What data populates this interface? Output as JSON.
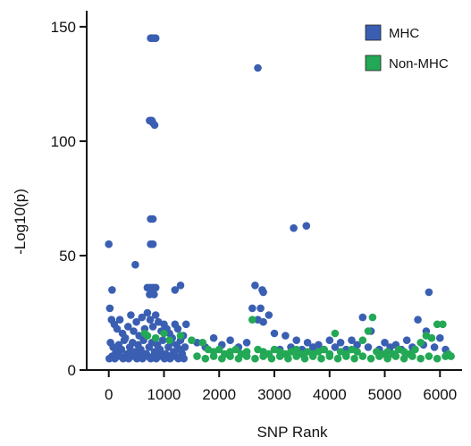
{
  "chart_data": {
    "type": "scatter",
    "title": "",
    "xlabel": "SNP Rank",
    "ylabel": "-Log10(p)",
    "xlim": [
      -400,
      6400
    ],
    "ylim": [
      0,
      157
    ],
    "xticks": [
      0,
      1000,
      2000,
      3000,
      4000,
      5000,
      6000
    ],
    "yticks": [
      0,
      50,
      100,
      150
    ],
    "grid": false,
    "legend_position": "top-right",
    "series": [
      {
        "name": "MHC",
        "color": "#3a5fb2",
        "points": [
          [
            0,
            55
          ],
          [
            60,
            35
          ],
          [
            480,
            46
          ],
          [
            760,
            145
          ],
          [
            780,
            145
          ],
          [
            800,
            145
          ],
          [
            830,
            145
          ],
          [
            850,
            145
          ],
          [
            740,
            109
          ],
          [
            760,
            109
          ],
          [
            780,
            109
          ],
          [
            800,
            108
          ],
          [
            830,
            107
          ],
          [
            760,
            66
          ],
          [
            800,
            66
          ],
          [
            760,
            55
          ],
          [
            800,
            55
          ],
          [
            700,
            36
          ],
          [
            750,
            36
          ],
          [
            800,
            36
          ],
          [
            850,
            36
          ],
          [
            740,
            33
          ],
          [
            820,
            33
          ],
          [
            1200,
            35
          ],
          [
            1300,
            37
          ],
          [
            2700,
            132
          ],
          [
            2650,
            37
          ],
          [
            2780,
            35
          ],
          [
            2800,
            34
          ],
          [
            3350,
            62
          ],
          [
            3580,
            63
          ],
          [
            5800,
            34
          ],
          [
            2600,
            27
          ],
          [
            2750,
            27
          ],
          [
            2900,
            24
          ],
          [
            2700,
            22
          ],
          [
            2800,
            21
          ],
          [
            3000,
            16
          ],
          [
            3200,
            15
          ],
          [
            3400,
            13
          ],
          [
            3600,
            12
          ],
          [
            3800,
            11
          ],
          [
            4000,
            13
          ],
          [
            4200,
            12
          ],
          [
            4400,
            13
          ],
          [
            4600,
            23
          ],
          [
            4750,
            17
          ],
          [
            5000,
            12
          ],
          [
            5200,
            11
          ],
          [
            5400,
            13
          ],
          [
            5600,
            22
          ],
          [
            5750,
            17
          ],
          [
            6000,
            14
          ],
          [
            20,
            27
          ],
          [
            50,
            22
          ],
          [
            100,
            20
          ],
          [
            150,
            18
          ],
          [
            200,
            22
          ],
          [
            250,
            16
          ],
          [
            300,
            14
          ],
          [
            350,
            19
          ],
          [
            400,
            24
          ],
          [
            450,
            17
          ],
          [
            500,
            21
          ],
          [
            550,
            15
          ],
          [
            600,
            23
          ],
          [
            650,
            18
          ],
          [
            700,
            25
          ],
          [
            750,
            22
          ],
          [
            800,
            19
          ],
          [
            850,
            24
          ],
          [
            900,
            21
          ],
          [
            950,
            17
          ],
          [
            1000,
            20
          ],
          [
            1050,
            18
          ],
          [
            1100,
            16
          ],
          [
            1150,
            14
          ],
          [
            1200,
            20
          ],
          [
            1250,
            18
          ],
          [
            1300,
            13
          ],
          [
            1350,
            15
          ],
          [
            1400,
            20
          ],
          [
            30,
            12
          ],
          [
            80,
            10
          ],
          [
            130,
            8
          ],
          [
            180,
            11
          ],
          [
            230,
            9
          ],
          [
            280,
            13
          ],
          [
            330,
            7
          ],
          [
            380,
            10
          ],
          [
            430,
            12
          ],
          [
            480,
            8
          ],
          [
            530,
            11
          ],
          [
            580,
            9
          ],
          [
            630,
            13
          ],
          [
            680,
            7
          ],
          [
            730,
            10
          ],
          [
            780,
            12
          ],
          [
            830,
            8
          ],
          [
            880,
            11
          ],
          [
            930,
            9
          ],
          [
            980,
            13
          ],
          [
            1030,
            7
          ],
          [
            1080,
            10
          ],
          [
            1130,
            12
          ],
          [
            1180,
            8
          ],
          [
            1230,
            11
          ],
          [
            1280,
            9
          ],
          [
            1330,
            7
          ],
          [
            1380,
            10
          ],
          [
            10,
            5
          ],
          [
            60,
            6
          ],
          [
            110,
            5
          ],
          [
            160,
            7
          ],
          [
            210,
            6
          ],
          [
            260,
            5
          ],
          [
            310,
            6
          ],
          [
            360,
            5
          ],
          [
            410,
            7
          ],
          [
            460,
            6
          ],
          [
            510,
            5
          ],
          [
            560,
            6
          ],
          [
            610,
            5
          ],
          [
            660,
            7
          ],
          [
            710,
            6
          ],
          [
            760,
            5
          ],
          [
            810,
            6
          ],
          [
            860,
            5
          ],
          [
            910,
            7
          ],
          [
            960,
            6
          ],
          [
            1010,
            5
          ],
          [
            1060,
            6
          ],
          [
            1110,
            5
          ],
          [
            1160,
            7
          ],
          [
            1210,
            6
          ],
          [
            1260,
            5
          ],
          [
            1310,
            6
          ],
          [
            1360,
            5
          ],
          [
            1600,
            12
          ],
          [
            1750,
            10
          ],
          [
            1900,
            14
          ],
          [
            2050,
            11
          ],
          [
            2200,
            13
          ],
          [
            2350,
            10
          ],
          [
            2500,
            12
          ],
          [
            3100,
            9
          ],
          [
            3300,
            10
          ],
          [
            3500,
            9
          ],
          [
            3700,
            10
          ],
          [
            3900,
            9
          ],
          [
            4100,
            10
          ],
          [
            4300,
            9
          ],
          [
            4500,
            11
          ],
          [
            4700,
            10
          ],
          [
            4900,
            9
          ],
          [
            5100,
            10
          ],
          [
            5300,
            9
          ],
          [
            5500,
            10
          ],
          [
            5700,
            11
          ],
          [
            5900,
            10
          ],
          [
            6100,
            9
          ]
        ]
      },
      {
        "name": "Non-MHC",
        "color": "#23a855",
        "points": [
          [
            650,
            16
          ],
          [
            700,
            15
          ],
          [
            850,
            14
          ],
          [
            1000,
            16
          ],
          [
            1100,
            13
          ],
          [
            1300,
            15
          ],
          [
            1500,
            13
          ],
          [
            1700,
            12
          ],
          [
            1800,
            9
          ],
          [
            1900,
            8
          ],
          [
            2000,
            9
          ],
          [
            2100,
            7
          ],
          [
            2200,
            8
          ],
          [
            2300,
            9
          ],
          [
            2400,
            7
          ],
          [
            2500,
            8
          ],
          [
            2600,
            22
          ],
          [
            2700,
            9
          ],
          [
            2800,
            8
          ],
          [
            2900,
            7
          ],
          [
            3000,
            9
          ],
          [
            3100,
            8
          ],
          [
            3200,
            7
          ],
          [
            3300,
            8
          ],
          [
            3400,
            9
          ],
          [
            3500,
            7
          ],
          [
            3600,
            8
          ],
          [
            3700,
            7
          ],
          [
            3800,
            8
          ],
          [
            3900,
            9
          ],
          [
            4000,
            7
          ],
          [
            4100,
            16
          ],
          [
            4200,
            8
          ],
          [
            4300,
            7
          ],
          [
            4400,
            9
          ],
          [
            4500,
            8
          ],
          [
            4600,
            13
          ],
          [
            4700,
            17
          ],
          [
            4780,
            23
          ],
          [
            4850,
            8
          ],
          [
            4950,
            7
          ],
          [
            5050,
            8
          ],
          [
            5150,
            7
          ],
          [
            5250,
            9
          ],
          [
            5350,
            8
          ],
          [
            5450,
            7
          ],
          [
            5550,
            9
          ],
          [
            5650,
            12
          ],
          [
            5750,
            15
          ],
          [
            5850,
            14
          ],
          [
            5950,
            20
          ],
          [
            6050,
            20
          ],
          [
            6150,
            7
          ],
          [
            6200,
            6
          ],
          [
            1600,
            6
          ],
          [
            1750,
            5
          ],
          [
            1900,
            6
          ],
          [
            2050,
            5
          ],
          [
            2200,
            6
          ],
          [
            2350,
            5
          ],
          [
            2500,
            6
          ],
          [
            2650,
            5
          ],
          [
            2800,
            6
          ],
          [
            2950,
            5
          ],
          [
            3100,
            6
          ],
          [
            3250,
            5
          ],
          [
            3400,
            6
          ],
          [
            3550,
            5
          ],
          [
            3700,
            6
          ],
          [
            3850,
            5
          ],
          [
            4000,
            6
          ],
          [
            4150,
            5
          ],
          [
            4300,
            6
          ],
          [
            4450,
            5
          ],
          [
            4600,
            6
          ],
          [
            4750,
            5
          ],
          [
            4900,
            6
          ],
          [
            5050,
            5
          ],
          [
            5200,
            6
          ],
          [
            5350,
            5
          ],
          [
            5500,
            6
          ],
          [
            5650,
            5
          ],
          [
            5800,
            6
          ],
          [
            5950,
            5
          ],
          [
            6100,
            6
          ]
        ]
      }
    ]
  }
}
